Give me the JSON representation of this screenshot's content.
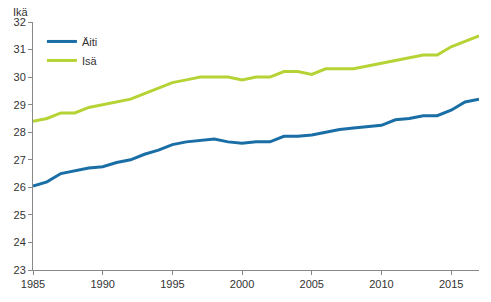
{
  "chart_data": {
    "type": "line",
    "y_label": "Ikä",
    "x": [
      1985,
      1986,
      1987,
      1988,
      1989,
      1990,
      1991,
      1992,
      1993,
      1994,
      1995,
      1996,
      1997,
      1998,
      1999,
      2000,
      2001,
      2002,
      2003,
      2004,
      2005,
      2006,
      2007,
      2008,
      2009,
      2010,
      2011,
      2012,
      2013,
      2014,
      2015,
      2016,
      2017
    ],
    "series": [
      {
        "name": "Äiti",
        "color": "#1a6ea6",
        "values": [
          26.05,
          26.2,
          26.5,
          26.6,
          26.7,
          26.75,
          26.9,
          27.0,
          27.2,
          27.35,
          27.55,
          27.65,
          27.7,
          27.75,
          27.65,
          27.6,
          27.65,
          27.65,
          27.85,
          27.85,
          27.9,
          28.0,
          28.1,
          28.15,
          28.2,
          28.25,
          28.45,
          28.5,
          28.6,
          28.6,
          28.8,
          29.1,
          29.2
        ]
      },
      {
        "name": "Isä",
        "color": "#b6d335",
        "values": [
          28.4,
          28.5,
          28.7,
          28.7,
          28.9,
          29.0,
          29.1,
          29.2,
          29.4,
          29.6,
          29.8,
          29.9,
          30.0,
          30.0,
          30.0,
          29.9,
          30.0,
          30.0,
          30.2,
          30.2,
          30.1,
          30.3,
          30.3,
          30.3,
          30.4,
          30.5,
          30.6,
          30.7,
          30.8,
          30.8,
          31.1,
          31.3,
          31.5
        ]
      }
    ],
    "xlim": [
      1985,
      2017
    ],
    "xticks": [
      1985,
      1990,
      1995,
      2000,
      2005,
      2010,
      2015
    ],
    "ylim": [
      23,
      32
    ],
    "yticks": [
      23,
      24,
      25,
      26,
      27,
      28,
      29,
      30,
      31,
      32
    ],
    "grid": false,
    "legend": "top left"
  }
}
